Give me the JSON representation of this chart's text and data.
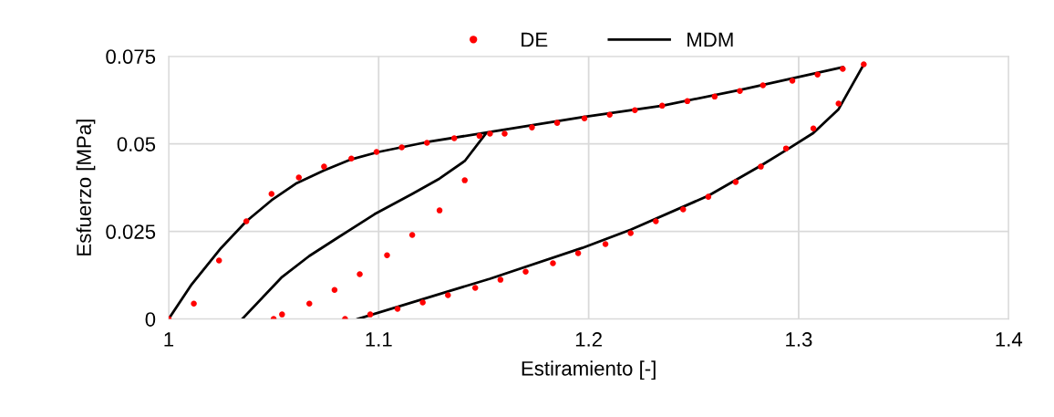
{
  "chart_data": {
    "type": "scatter",
    "xlabel": "Estiramiento [-]",
    "ylabel": "Esfuerzo [MPa]",
    "xlim": [
      1,
      1.4
    ],
    "xticks": [
      1,
      1.1,
      1.2,
      1.3,
      1.4
    ],
    "ylim": [
      0,
      0.075
    ],
    "yticks": [
      0,
      0.025,
      0.05,
      0.075
    ],
    "grid": true,
    "legend": "top",
    "series": [
      {
        "name": "DE",
        "marker": "circle",
        "color": "#ff0000",
        "x": [
          1.0,
          1.012,
          1.024,
          1.037,
          1.049,
          1.062,
          1.074,
          1.087,
          1.099,
          1.111,
          1.123,
          1.136,
          1.148,
          1.153,
          1.16,
          1.173,
          1.185,
          1.198,
          1.21,
          1.222,
          1.235,
          1.247,
          1.26,
          1.272,
          1.283,
          1.297,
          1.309,
          1.321,
          1.331,
          1.319,
          1.307,
          1.294,
          1.282,
          1.27,
          1.257,
          1.245,
          1.232,
          1.22,
          1.208,
          1.195,
          1.183,
          1.17,
          1.158,
          1.146,
          1.133,
          1.121,
          1.109,
          1.096,
          1.084,
          1.05,
          1.054,
          1.067,
          1.079,
          1.091,
          1.104,
          1.116,
          1.129,
          1.141
        ],
        "values": [
          0,
          0.0044,
          0.0167,
          0.0279,
          0.0357,
          0.0404,
          0.0435,
          0.0458,
          0.0477,
          0.049,
          0.0503,
          0.0516,
          0.0523,
          0.0529,
          0.0529,
          0.0547,
          0.056,
          0.0573,
          0.0583,
          0.0596,
          0.0609,
          0.0622,
          0.0635,
          0.0651,
          0.0667,
          0.068,
          0.0698,
          0.0714,
          0.0727,
          0.0615,
          0.0544,
          0.0487,
          0.0435,
          0.0391,
          0.0349,
          0.0313,
          0.0279,
          0.0245,
          0.0214,
          0.0188,
          0.0159,
          0.0135,
          0.0112,
          0.0089,
          0.0068,
          0.0047,
          0.0029,
          0.0013,
          0,
          0,
          0.0013,
          0.0044,
          0.0083,
          0.0128,
          0.0182,
          0.024,
          0.031,
          0.0396
        ]
      },
      {
        "name": "MDM",
        "type": "line",
        "marker": "none",
        "line_style": "solid",
        "color": "#000000",
        "x": [
          1.0,
          1.011,
          1.025,
          1.037,
          1.049,
          1.061,
          1.074,
          1.087,
          1.1,
          1.123,
          1.153,
          1.197,
          1.235,
          1.272,
          1.321,
          null,
          1.331,
          1.319,
          1.307,
          1.294,
          1.282,
          1.257,
          1.22,
          1.197,
          1.153,
          1.09,
          null,
          1.035,
          1.054,
          1.067,
          1.081,
          1.098,
          1.116,
          1.129,
          1.141,
          1.151
        ],
        "values": [
          0,
          0.0099,
          0.0203,
          0.0279,
          0.0339,
          0.0388,
          0.0424,
          0.0456,
          0.0477,
          0.0505,
          0.0534,
          0.0576,
          0.0609,
          0.0654,
          0.0719,
          null,
          0.0727,
          0.0599,
          0.0531,
          0.0482,
          0.0438,
          0.0352,
          0.0255,
          0.0203,
          0.0115,
          0,
          null,
          0,
          0.012,
          0.018,
          0.0234,
          0.0299,
          0.0357,
          0.0401,
          0.0451,
          0.0529
        ]
      }
    ]
  }
}
